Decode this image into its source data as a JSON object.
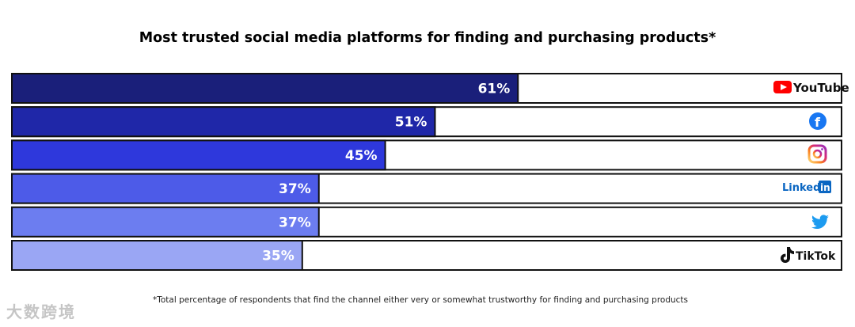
{
  "chart_data": {
    "type": "bar",
    "orientation": "horizontal",
    "title": "Most trusted social media platforms for finding and purchasing products*",
    "categories": [
      "YouTube",
      "Facebook",
      "Instagram",
      "LinkedIn",
      "Twitter",
      "TikTok"
    ],
    "values": [
      61,
      51,
      45,
      37,
      37,
      35
    ],
    "labels": [
      "61%",
      "51%",
      "45%",
      "37%",
      "37%",
      "35%"
    ],
    "xlim": [
      0,
      100
    ],
    "colors": [
      "#1a1f7a",
      "#1f27a8",
      "#2e38dc",
      "#4d5be8",
      "#6c7df0",
      "#9aa6f4"
    ],
    "logo_text": {
      "youtube": "YouTube",
      "linkedin": "Linked",
      "linkedin_in": "in",
      "tiktok": "TikTok"
    }
  },
  "footnote": "*Total percentage of respondents that find the channel either very or somewhat trustworthy for finding and purchasing products",
  "watermark": "大数跨境"
}
